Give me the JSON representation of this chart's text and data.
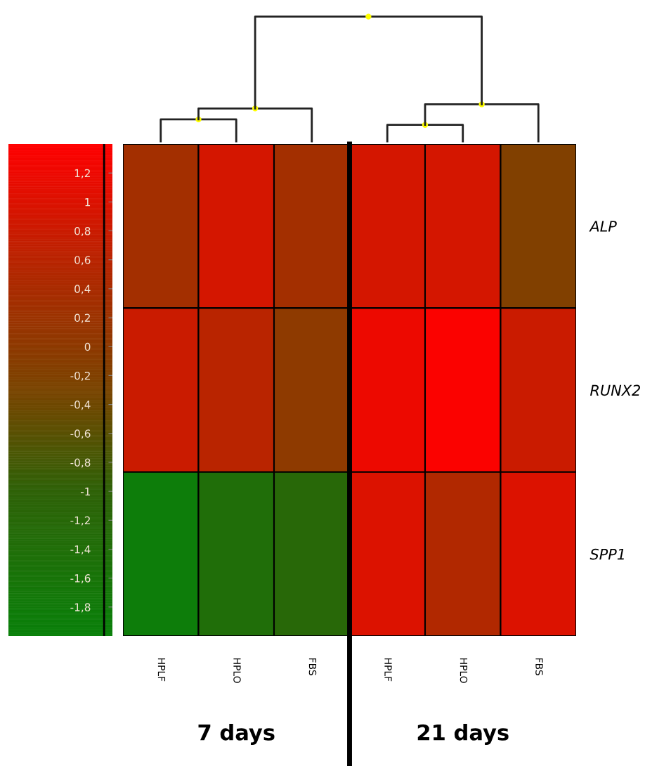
{
  "chart_data": {
    "type": "heatmap",
    "categories": [
      "HPLF",
      "HPLO",
      "FBS",
      "HPLF",
      "HPLO",
      "FBS"
    ],
    "y_categories": [
      "ALP",
      "RUNX2",
      "SPP1"
    ],
    "cells": [
      [
        0.3,
        0.9,
        0.3,
        0.9,
        0.9,
        -0.2
      ],
      [
        0.8,
        0.6,
        0.0,
        1.2,
        1.35,
        0.8
      ],
      [
        -1.9,
        -1.4,
        -1.2,
        1.0,
        0.5,
        1.0
      ]
    ],
    "clim": [
      -2.0,
      1.4
    ],
    "cticks": [
      {
        "value": 1.2,
        "label": "1,2"
      },
      1,
      {
        "value": 0.8,
        "label": "0,8"
      },
      {
        "value": 0.6,
        "label": "0,6"
      },
      {
        "value": 0.4,
        "label": "0,4"
      },
      {
        "value": 0.2,
        "label": "0,2"
      },
      0,
      {
        "value": -0.2,
        "label": "-0,2"
      },
      {
        "value": -0.4,
        "label": "-0,4"
      },
      {
        "value": -0.6,
        "label": "-0,6"
      },
      {
        "value": -0.8,
        "label": "-0,8"
      },
      -1,
      {
        "value": -1.2,
        "label": "-1,2"
      },
      {
        "value": -1.4,
        "label": "-1,4"
      },
      {
        "value": -1.6,
        "label": "-1,6"
      },
      {
        "value": -1.8,
        "label": "-1,8"
      }
    ],
    "annotations": [
      "7 days",
      "21 days"
    ]
  }
}
